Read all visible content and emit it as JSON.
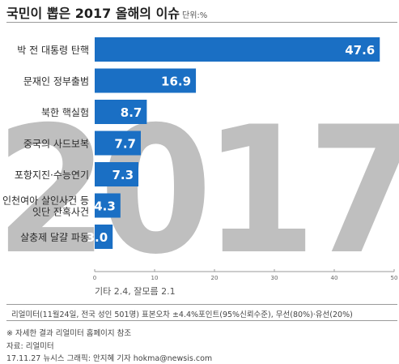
{
  "header": {
    "title": "국민이 뽑은 2017 올해의 이슈",
    "unit": "단위:%"
  },
  "background_text": "2017",
  "chart_data": {
    "type": "bar",
    "orientation": "horizontal",
    "title": "국민이 뽑은 2017 올해의 이슈",
    "unit": "단위:%",
    "categories": [
      [
        "박 전 대통령 탄핵"
      ],
      [
        "문재인 정부출범"
      ],
      [
        "북한 핵실험"
      ],
      [
        "중국의 사드보복"
      ],
      [
        "포항지진·수능연기"
      ],
      [
        "인천여아 살인사건 등",
        "잇단 잔혹사건"
      ],
      [
        "살충제 달걀 파동"
      ]
    ],
    "values": [
      47.6,
      16.9,
      8.7,
      7.7,
      7.3,
      4.3,
      3.0
    ],
    "value_labels": [
      "47.6",
      "16.9",
      "8.7",
      "7.7",
      "7.3",
      "4.3",
      "3.0"
    ],
    "xlim": [
      0,
      50
    ],
    "xticks": [
      0,
      10,
      20,
      30,
      40,
      50
    ],
    "grid": false,
    "bar_color": "#1a6fc4",
    "label_color": "#ffffff",
    "note_below_axis": "기타 2.4, 잘모름 2.1"
  },
  "footer": {
    "survey": "리얼미터(11월24일, 전국 성인 501명) 표본오차 ±4.4%포인트(95%신뢰수준), 무선(80%)·유선(20%)",
    "note": "※ 자세한 결과 리얼미터 홈페이지 참조",
    "source": "자료: 리얼미터",
    "credit": "17.11.27 뉴시스 그래픽: 안지혜 기자 hokma@newsis.com"
  }
}
